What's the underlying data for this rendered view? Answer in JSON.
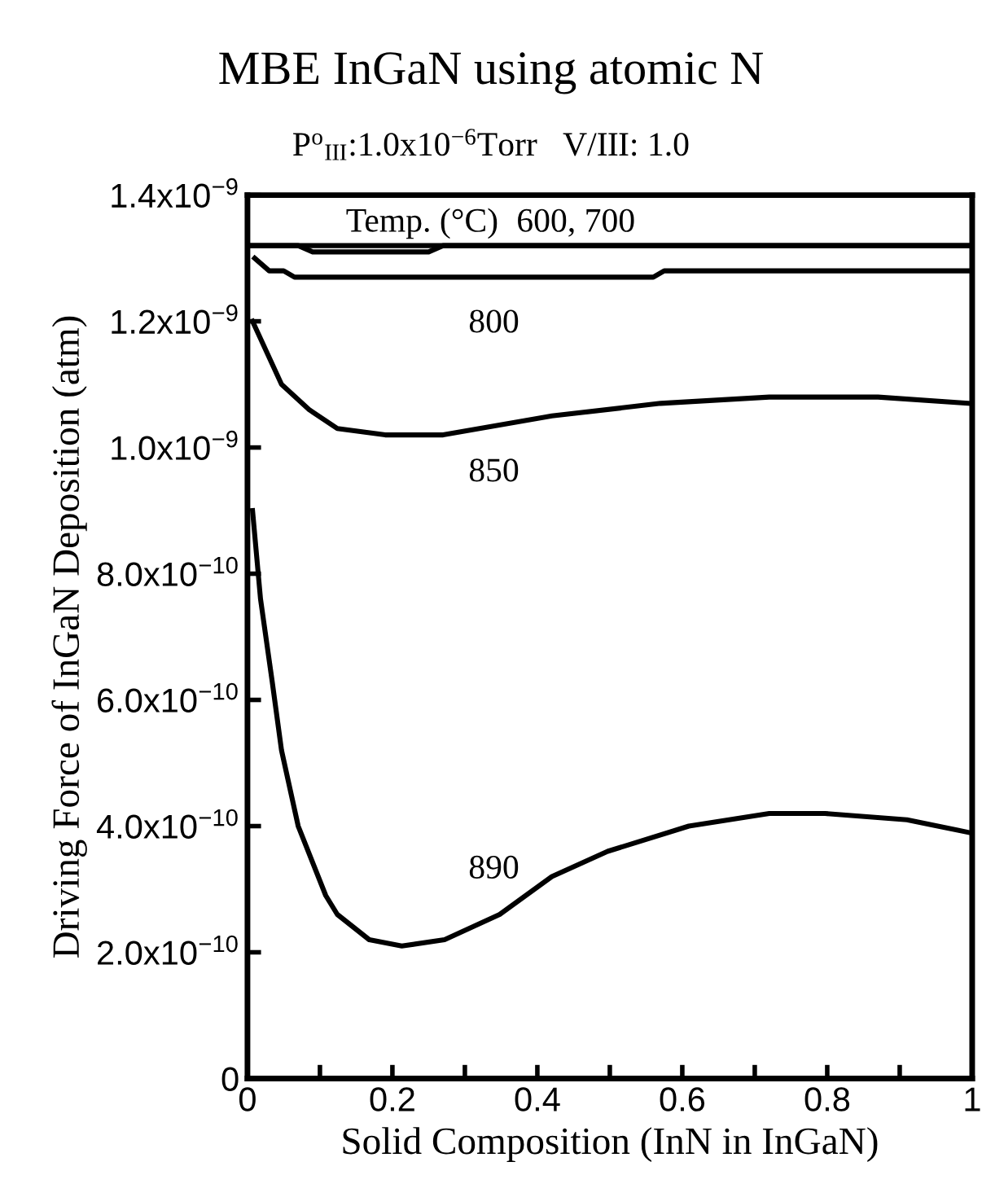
{
  "chart_data": {
    "type": "line",
    "title": "MBE InGaN using atomic N",
    "subtitle": "P$^{o}$$_{III}$:1.0x10$^{−6}$Torr   V/III: 1.0",
    "xlabel": "Solid Composition (InN in InGaN)",
    "ylabel": "Driving Force of InGaN Deposition (atm)",
    "legend_title": "Temp. (°C)",
    "series": [
      {
        "name": "600, 700",
        "color": "#000000",
        "x": [
          0,
          1
        ],
        "values": [
          1.32e-09,
          1.32e-09
        ]
      },
      {
        "color": "#000000",
        "x": [
          0,
          0.07,
          0.09,
          0.25,
          0.27,
          1
        ],
        "values": [
          1.32e-09,
          1.32e-09,
          1.31e-09,
          1.31e-09,
          1.32e-09,
          1.32e-09
        ]
      },
      {
        "name": "800",
        "color": "#000000",
        "x": [
          0.01,
          0.03,
          0.05,
          0.065,
          0.56,
          0.575,
          1
        ],
        "values": [
          1.3e-09,
          1.28e-09,
          1.28e-09,
          1.27e-09,
          1.27e-09,
          1.28e-09,
          1.28e-09
        ]
      },
      {
        "name": "850",
        "color": "#000000",
        "x": [
          0.007,
          0.047,
          0.085,
          0.124,
          0.19,
          0.27,
          0.42,
          0.57,
          0.72,
          0.87,
          0.995
        ],
        "values": [
          1.2e-09,
          1.1e-09,
          1.06e-09,
          1.03e-09,
          1.02e-09,
          1.02e-09,
          1.05e-09,
          1.07e-09,
          1.08e-09,
          1.08e-09,
          1.07e-09
        ]
      },
      {
        "name": "890",
        "color": "#000000",
        "x": [
          0.007,
          0.018,
          0.034,
          0.047,
          0.07,
          0.108,
          0.124,
          0.168,
          0.213,
          0.272,
          0.348,
          0.42,
          0.497,
          0.609,
          0.72,
          0.797,
          0.91,
          0.995
        ],
        "values": [
          9e-10,
          7.6e-10,
          6.3e-10,
          5.2e-10,
          4e-10,
          2.9e-10,
          2.6e-10,
          2.2e-10,
          2.1e-10,
          2.2e-10,
          2.6e-10,
          3.2e-10,
          3.6e-10,
          4e-10,
          4.2e-10,
          4.2e-10,
          4.1e-10,
          3.9e-10
        ]
      }
    ],
    "xlim": [
      0,
      1
    ],
    "xticks": [
      0,
      {
        "value": 0.1,
        "label": null
      },
      0.2,
      {
        "value": 0.3,
        "label": null
      },
      0.4,
      {
        "value": 0.5,
        "label": null
      },
      0.6,
      {
        "value": 0.7,
        "label": null
      },
      0.8,
      {
        "value": 0.9,
        "label": null
      },
      1
    ],
    "ylim": [
      0,
      1.4e-09
    ],
    "yticks": [
      0,
      {
        "value": 2e-10,
        "label": "2.0x10$^{−10}$"
      },
      {
        "value": 4e-10,
        "label": "4.0x10$^{−10}$"
      },
      {
        "value": 6e-10,
        "label": "6.0x10$^{−10}$"
      },
      {
        "value": 8e-10,
        "label": "8.0x10$^{−10}$"
      },
      {
        "value": 1e-09,
        "label": "1.0x10$^{−9}$"
      },
      {
        "value": 1.2e-09,
        "label": "1.2x10$^{−9}$"
      },
      {
        "value": 1.4e-09,
        "label": "1.4x10$^{−9}$"
      }
    ],
    "grid": false,
    "legend": false,
    "marker": "none",
    "line_style": "solid"
  }
}
